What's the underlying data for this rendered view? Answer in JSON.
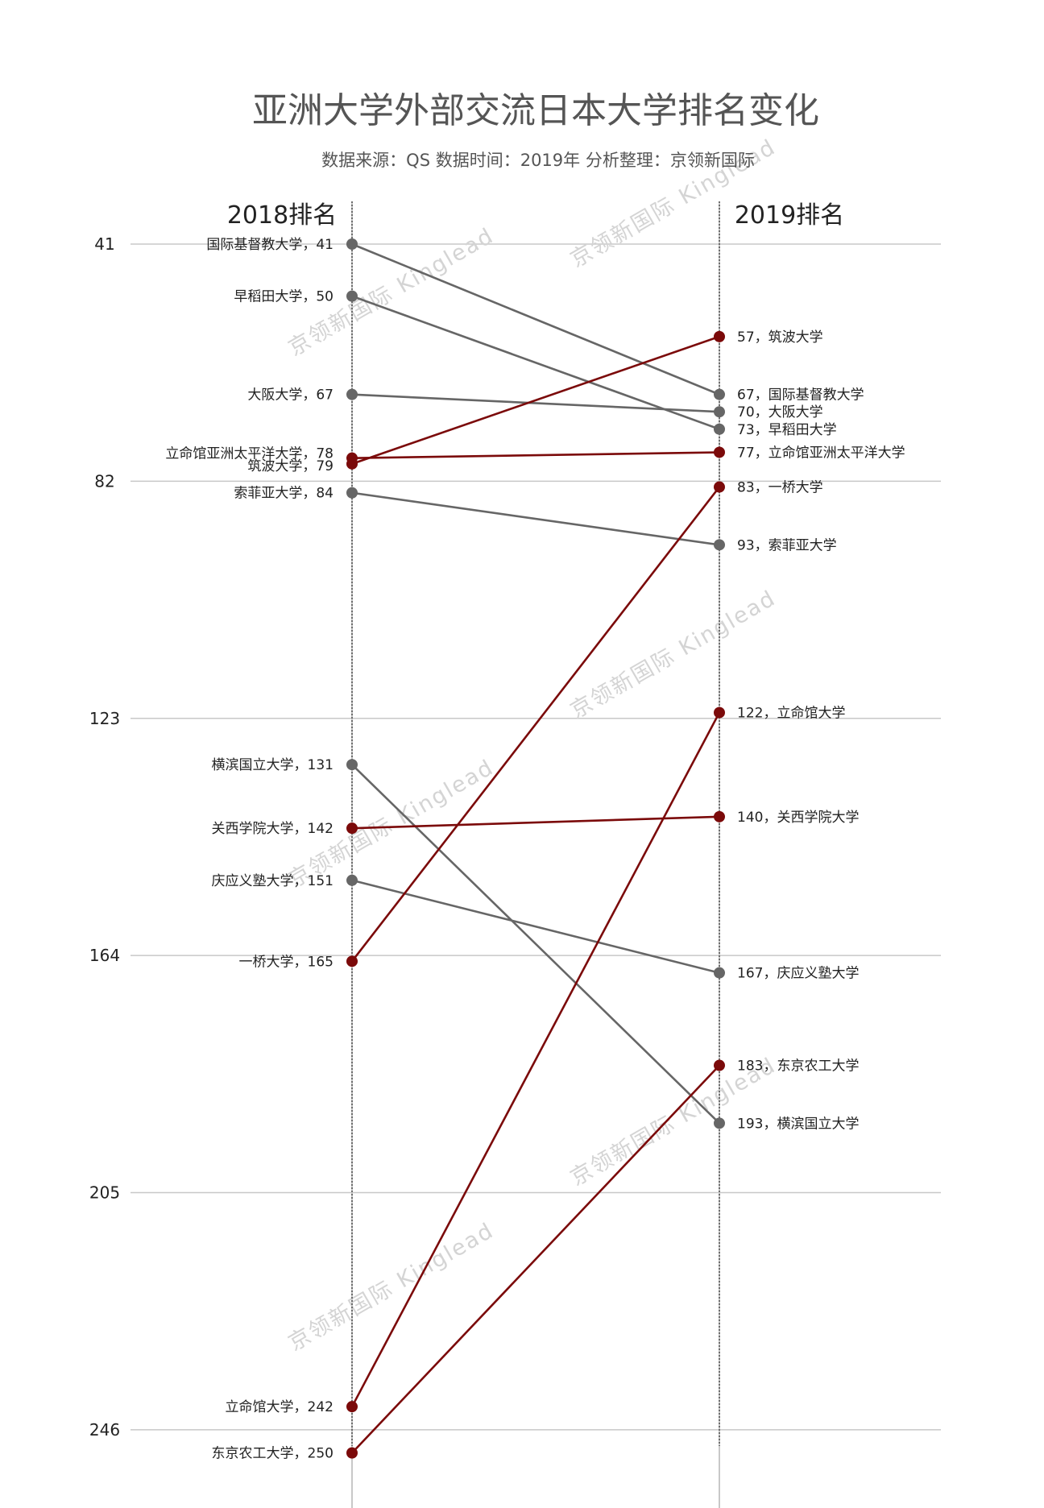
{
  "chart_data": {
    "type": "slope",
    "title": "亚洲大学外部交流日本大学排名变化",
    "subtitle": "数据来源：QS 数据时间：2019年 分析整理：京领新国际",
    "columns": [
      "2018排名",
      "2019排名"
    ],
    "yticks": [
      41,
      82,
      123,
      164,
      205,
      246
    ],
    "ylim": [
      41,
      250
    ],
    "y_inverted": true,
    "grid": true,
    "colors": {
      "down": "#666666",
      "up": "#7b0a0a"
    },
    "watermark": "京领新国际 Kinglead",
    "series": [
      {
        "name": "国际基督教大学",
        "y2018": 41,
        "y2019": 67,
        "trend": "down"
      },
      {
        "name": "早稻田大学",
        "y2018": 50,
        "y2019": 73,
        "trend": "down"
      },
      {
        "name": "大阪大学",
        "y2018": 67,
        "y2019": 70,
        "trend": "down"
      },
      {
        "name": "立命馆亚洲太平洋大学",
        "y2018": 78,
        "y2019": 77,
        "trend": "up"
      },
      {
        "name": "筑波大学",
        "y2018": 79,
        "y2019": 57,
        "trend": "up"
      },
      {
        "name": "索菲亚大学",
        "y2018": 84,
        "y2019": 93,
        "trend": "down"
      },
      {
        "name": "横滨国立大学",
        "y2018": 131,
        "y2019": 193,
        "trend": "down"
      },
      {
        "name": "关西学院大学",
        "y2018": 142,
        "y2019": 140,
        "trend": "up"
      },
      {
        "name": "庆应义塾大学",
        "y2018": 151,
        "y2019": 167,
        "trend": "down"
      },
      {
        "name": "一桥大学",
        "y2018": 165,
        "y2019": 83,
        "trend": "up"
      },
      {
        "name": "立命馆大学",
        "y2018": 242,
        "y2019": 122,
        "trend": "up"
      },
      {
        "name": "东京农工大学",
        "y2018": 250,
        "y2019": 183,
        "trend": "up"
      }
    ]
  }
}
